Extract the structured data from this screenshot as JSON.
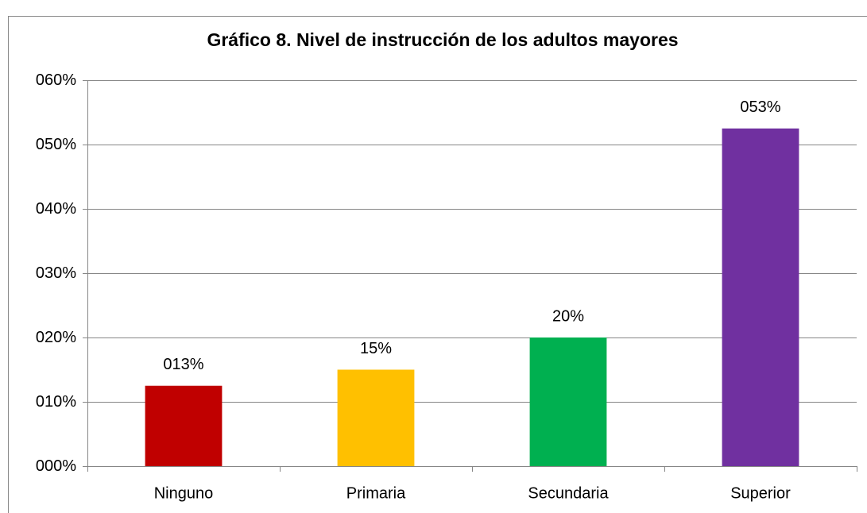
{
  "chart_data": {
    "type": "bar",
    "title": "Gráfico 8. Nivel de instrucción de los adultos mayores",
    "categories": [
      "Ninguno",
      "Primaria",
      "Secundaria",
      "Superior"
    ],
    "values": [
      12.5,
      15,
      20,
      52.5
    ],
    "value_labels": [
      "013%",
      "15%",
      "20%",
      "053%"
    ],
    "colors": [
      "#c00000",
      "#ffc000",
      "#00b050",
      "#7030a0"
    ],
    "ylim": [
      0,
      60
    ],
    "yticks": [
      {
        "value": 0,
        "label": "000%"
      },
      {
        "value": 10,
        "label": "010%"
      },
      {
        "value": 20,
        "label": "020%"
      },
      {
        "value": 30,
        "label": "030%"
      },
      {
        "value": 40,
        "label": "040%"
      },
      {
        "value": 50,
        "label": "050%"
      },
      {
        "value": 60,
        "label": "060%"
      }
    ],
    "grid": true
  }
}
